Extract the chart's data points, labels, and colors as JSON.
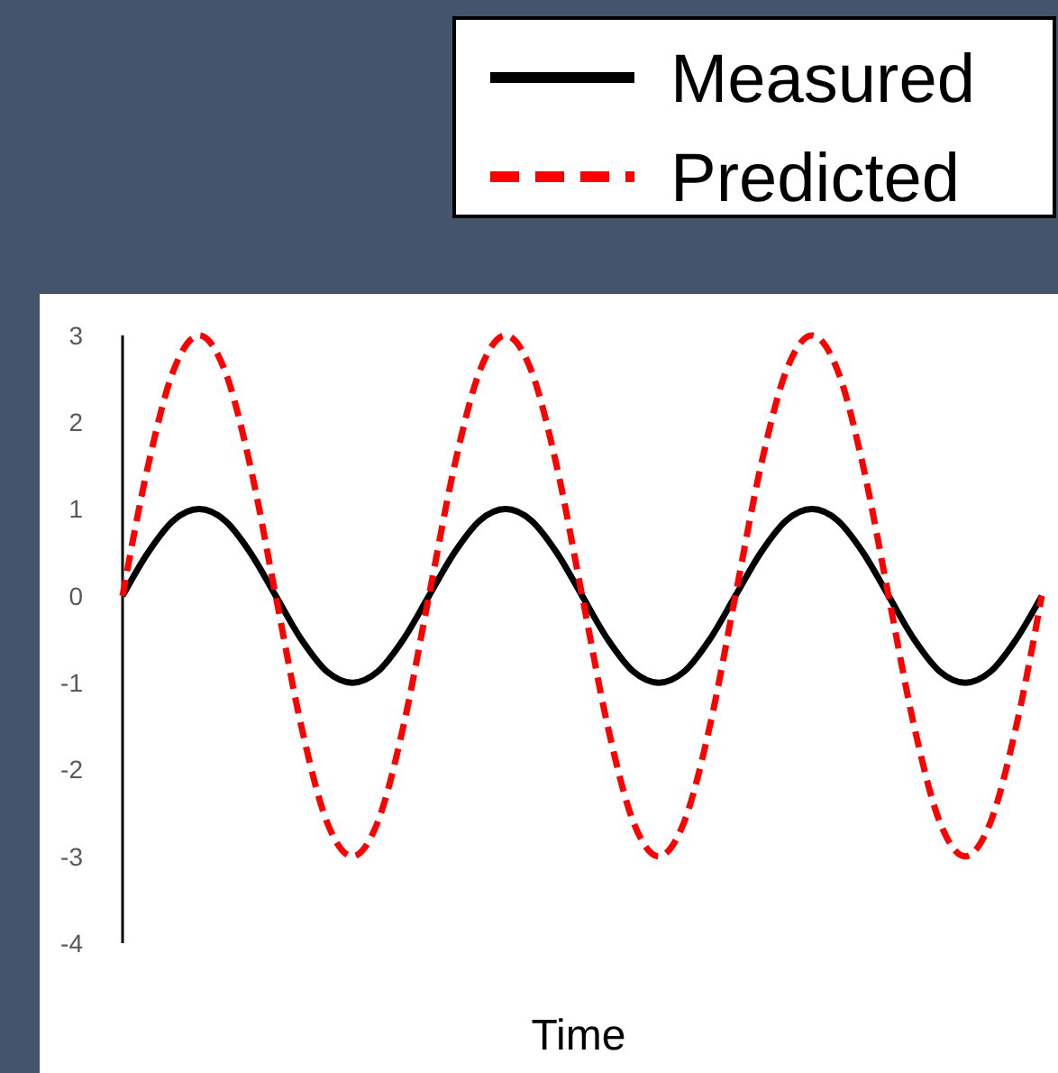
{
  "chart_data": {
    "type": "line",
    "xlabel": "Time",
    "categories": [
      null,
      null,
      null,
      null,
      null,
      null,
      null,
      null,
      null,
      null,
      null,
      null,
      null,
      null,
      null,
      null,
      null,
      null,
      null,
      null,
      null,
      null,
      null,
      null,
      null,
      null,
      null,
      null,
      null,
      null,
      null,
      null,
      null,
      null,
      null,
      null,
      null
    ],
    "ylim": [
      -4,
      3
    ],
    "yticks": [
      -4,
      -3,
      -2,
      -1,
      0,
      1,
      2,
      3
    ],
    "grid": false,
    "legend": "top right",
    "tick_labels": "y",
    "series": [
      {
        "name": "Measured",
        "color": "#000000",
        "line_style": "solid",
        "values": [
          0,
          0.5,
          0.87,
          1,
          0.87,
          0.5,
          0,
          -0.5,
          -0.87,
          -1,
          -0.87,
          -0.5,
          0,
          0.5,
          0.87,
          1,
          0.87,
          0.5,
          0,
          -0.5,
          -0.87,
          -1,
          -0.87,
          -0.5,
          0,
          0.5,
          0.87,
          1,
          0.87,
          0.5,
          0,
          -0.5,
          -0.87,
          -1,
          -0.87,
          -0.5,
          0
        ]
      },
      {
        "name": "Predicted",
        "color": "#ff0000",
        "line_style": "dashed",
        "values": [
          0,
          1.5,
          2.6,
          3,
          2.6,
          1.5,
          0,
          -1.5,
          -2.6,
          -3,
          -2.6,
          -1.5,
          0,
          1.5,
          2.6,
          3,
          2.6,
          1.5,
          0,
          -1.5,
          -2.6,
          -3,
          -2.6,
          -1.5,
          0,
          1.5,
          2.6,
          3,
          2.6,
          1.5,
          0,
          -1.5,
          -2.6,
          -3,
          -2.6,
          -1.5,
          0
        ]
      }
    ]
  }
}
